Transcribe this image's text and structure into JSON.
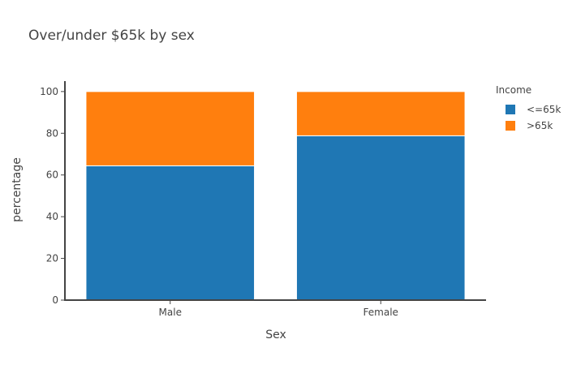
{
  "chart_data": {
    "type": "bar",
    "stacked": true,
    "title": "Over/under $65k by sex",
    "xlabel": "Sex",
    "ylabel": "percentage",
    "categories": [
      "Male",
      "Female"
    ],
    "series": [
      {
        "name": "<=65k",
        "color": "#1f77b4",
        "values": [
          64.4,
          78.8
        ]
      },
      {
        "name": ">65k",
        "color": "#ff7f0e",
        "values": [
          35.6,
          21.2
        ]
      }
    ],
    "ylim": [
      0,
      105
    ],
    "yticks": [
      0,
      20,
      40,
      60,
      80,
      100
    ],
    "legend_title": "Income",
    "legend_position": "right",
    "grid": false
  }
}
